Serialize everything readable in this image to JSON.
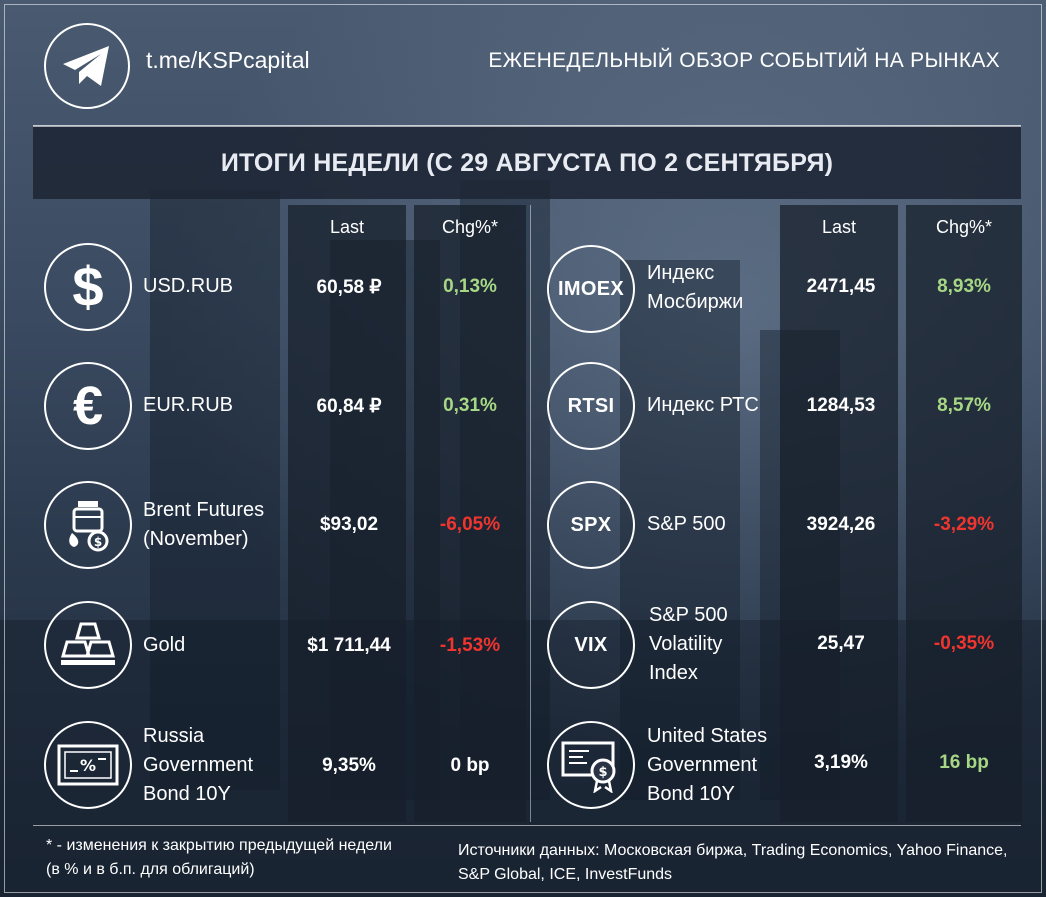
{
  "header": {
    "link": "t.me/KSPcapital",
    "title": "ЕЖЕНЕДЕЛЬНЫЙ ОБЗОР СОБЫТИЙ НА РЫНКАХ"
  },
  "banner": {
    "title": "ИТОГИ НЕДЕЛИ (С 29 АВГУСТА ПО 2 СЕНТЯБРЯ)"
  },
  "columns": {
    "last": "Last",
    "chg": "Chg%*"
  },
  "left_rows": [
    {
      "icon": "dollar-icon",
      "label": "USD.RUB",
      "last": "60,58 ₽",
      "chg": "0,13%",
      "dir": "pos"
    },
    {
      "icon": "euro-icon",
      "label": "EUR.RUB",
      "last": "60,84 ₽",
      "chg": "0,31%",
      "dir": "pos"
    },
    {
      "icon": "oil-barrel-icon",
      "label": "Brent Futures\n(November)",
      "last": "$93,02",
      "chg": "-6,05%",
      "dir": "neg"
    },
    {
      "icon": "gold-bars-icon",
      "label": "Gold",
      "last": "$1 711,44",
      "chg": "-1,53%",
      "dir": "neg"
    },
    {
      "icon": "bond-certificate-icon",
      "label": "Russia\nGovernment\nBond 10Y",
      "last": "9,35%",
      "chg": "0 bp",
      "dir": "neu"
    }
  ],
  "right_rows": [
    {
      "ticker": "IMOEX",
      "label": "Индекс\nМосбиржи",
      "last": "2471,45",
      "chg": "8,93%",
      "dir": "pos"
    },
    {
      "ticker": "RTSI",
      "label": "Индекс РТС",
      "last": "1284,53",
      "chg": "8,57%",
      "dir": "pos"
    },
    {
      "ticker": "SPX",
      "label": "S&P 500",
      "last": "3924,26",
      "chg": "-3,29%",
      "dir": "neg"
    },
    {
      "ticker": "VIX",
      "label": "S&P 500\nVolatility\nIndex",
      "last": "25,47",
      "chg": "-0,35%",
      "dir": "neg"
    },
    {
      "icon": "bond-certificate-seal-icon",
      "label": "United States\nGovernment\nBond 10Y",
      "last": "3,19%",
      "chg": "16 bp",
      "dir": "pos"
    }
  ],
  "footer": {
    "note_line1": "* - изменения к закрытию предыдущей недели",
    "note_line2": "(в % и в б.п. для облигаций)",
    "sources_line1": "Источники данных: Московская биржа, Trading Economics, Yahoo Finance,",
    "sources_line2": "S&P Global, ICE, InvestFunds"
  },
  "colors": {
    "positive": "#a6d785",
    "negative": "#f0352f"
  }
}
